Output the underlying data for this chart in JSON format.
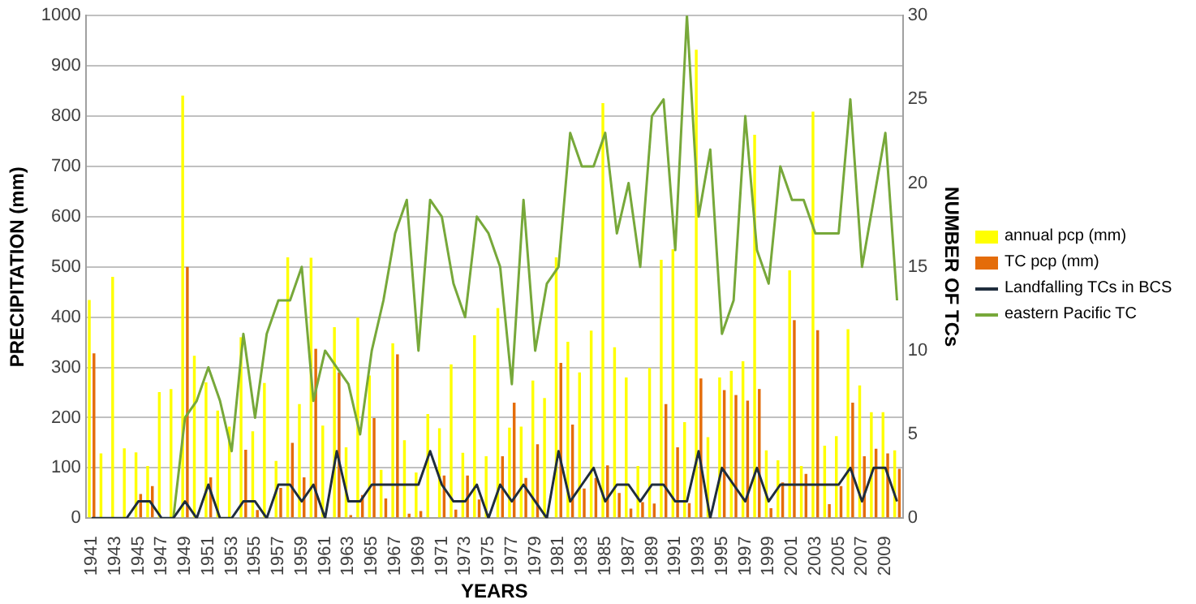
{
  "chart_data": {
    "type": "bar",
    "xlabel": "YEARS",
    "ylabel": "PRECIPITATION (mm)",
    "y2label": "NUMBER OF TCs",
    "categories": [
      "1941",
      null,
      "1943",
      null,
      "1945",
      null,
      "1947",
      null,
      "1949",
      null,
      "1951",
      null,
      "1953",
      null,
      "1955",
      null,
      "1957",
      null,
      "1959",
      null,
      "1961",
      null,
      "1963",
      null,
      "1965",
      null,
      "1967",
      null,
      "1969",
      null,
      "1971",
      null,
      "1973",
      null,
      "1975",
      null,
      "1977",
      null,
      "1979",
      null,
      "1981",
      null,
      "1983",
      null,
      "1985",
      null,
      "1987",
      null,
      "1989",
      null,
      "1991",
      null,
      "1993",
      null,
      "1995",
      null,
      "1997",
      null,
      "1999",
      null,
      "2001",
      null,
      "2003",
      null,
      "2005",
      null,
      "2007",
      null,
      "2009",
      null
    ],
    "series": [
      {
        "name": "annual pcp  (mm)",
        "color": "#ffff00",
        "values": [
          434,
          129,
          480,
          139,
          131,
          104,
          251,
          257,
          841,
          323,
          270,
          214,
          182,
          360,
          173,
          269,
          114,
          519,
          227,
          518,
          184,
          380,
          141,
          399,
          284,
          96,
          348,
          155,
          91,
          207,
          179,
          306,
          130,
          364,
          123,
          418,
          180,
          182,
          274,
          239,
          519,
          351,
          290,
          373,
          826,
          340,
          280,
          104,
          299,
          514,
          535,
          191,
          932,
          161,
          280,
          293,
          312,
          763,
          135,
          115,
          493,
          104,
          809,
          144,
          163,
          376,
          264,
          211,
          211,
          135
        ]
      },
      {
        "name": "TC pcp (mm)",
        "color": "#e46c0a",
        "values": [
          328,
          0,
          0,
          0,
          48,
          64,
          0,
          0,
          500,
          0,
          81,
          0,
          0,
          136,
          16,
          0,
          60,
          150,
          81,
          337,
          0,
          290,
          6,
          46,
          199,
          39,
          326,
          9,
          14,
          0,
          85,
          17,
          85,
          37,
          0,
          123,
          230,
          80,
          147,
          0,
          309,
          186,
          59,
          80,
          105,
          50,
          19,
          32,
          29,
          227,
          141,
          30,
          278,
          0,
          255,
          245,
          234,
          257,
          20,
          71,
          394,
          88,
          374,
          28,
          64,
          230,
          123,
          138,
          129,
          98
        ]
      },
      {
        "name": "Landfalling TCs in BCS",
        "type": "line",
        "axis": "y2",
        "color": "#1f2d3d",
        "values": [
          0,
          0,
          0,
          0,
          1,
          1,
          0,
          0,
          1,
          0,
          2,
          0,
          0,
          1,
          1,
          0,
          2,
          2,
          1,
          2,
          0,
          4,
          1,
          1,
          2,
          2,
          2,
          2,
          2,
          4,
          2,
          1,
          1,
          2,
          0,
          2,
          1,
          2,
          1,
          0,
          4,
          1,
          2,
          3,
          1,
          2,
          2,
          1,
          2,
          2,
          1,
          1,
          4,
          0,
          3,
          2,
          1,
          3,
          1,
          2,
          2,
          2,
          2,
          2,
          2,
          3,
          1,
          3,
          3,
          1
        ]
      },
      {
        "name": "eastern Pacific TC",
        "type": "line",
        "axis": "y2",
        "color": "#77a83a",
        "values": [
          null,
          null,
          null,
          null,
          null,
          null,
          null,
          0,
          6,
          7,
          9,
          7,
          4,
          11,
          6,
          11,
          13,
          13,
          15,
          7,
          10,
          9,
          8,
          5,
          10,
          13,
          17,
          19,
          10,
          19,
          18,
          14,
          12,
          18,
          17,
          15,
          8,
          19,
          10,
          14,
          15,
          23,
          21,
          21,
          23,
          17,
          20,
          15,
          24,
          25,
          16,
          30,
          18,
          22,
          11,
          13,
          24,
          16,
          14,
          21,
          19,
          19,
          17,
          17,
          17,
          25,
          15,
          19,
          23,
          13
        ]
      }
    ],
    "ylim": [
      0,
      1000
    ],
    "yticks": [
      0,
      100,
      200,
      300,
      400,
      500,
      600,
      700,
      800,
      900,
      1000
    ],
    "y2lim": [
      0,
      30
    ],
    "y2ticks": [
      0,
      5,
      10,
      15,
      20,
      25,
      30
    ],
    "grid": "y",
    "legend": "right",
    "marker": "none",
    "line_style": "solid"
  }
}
